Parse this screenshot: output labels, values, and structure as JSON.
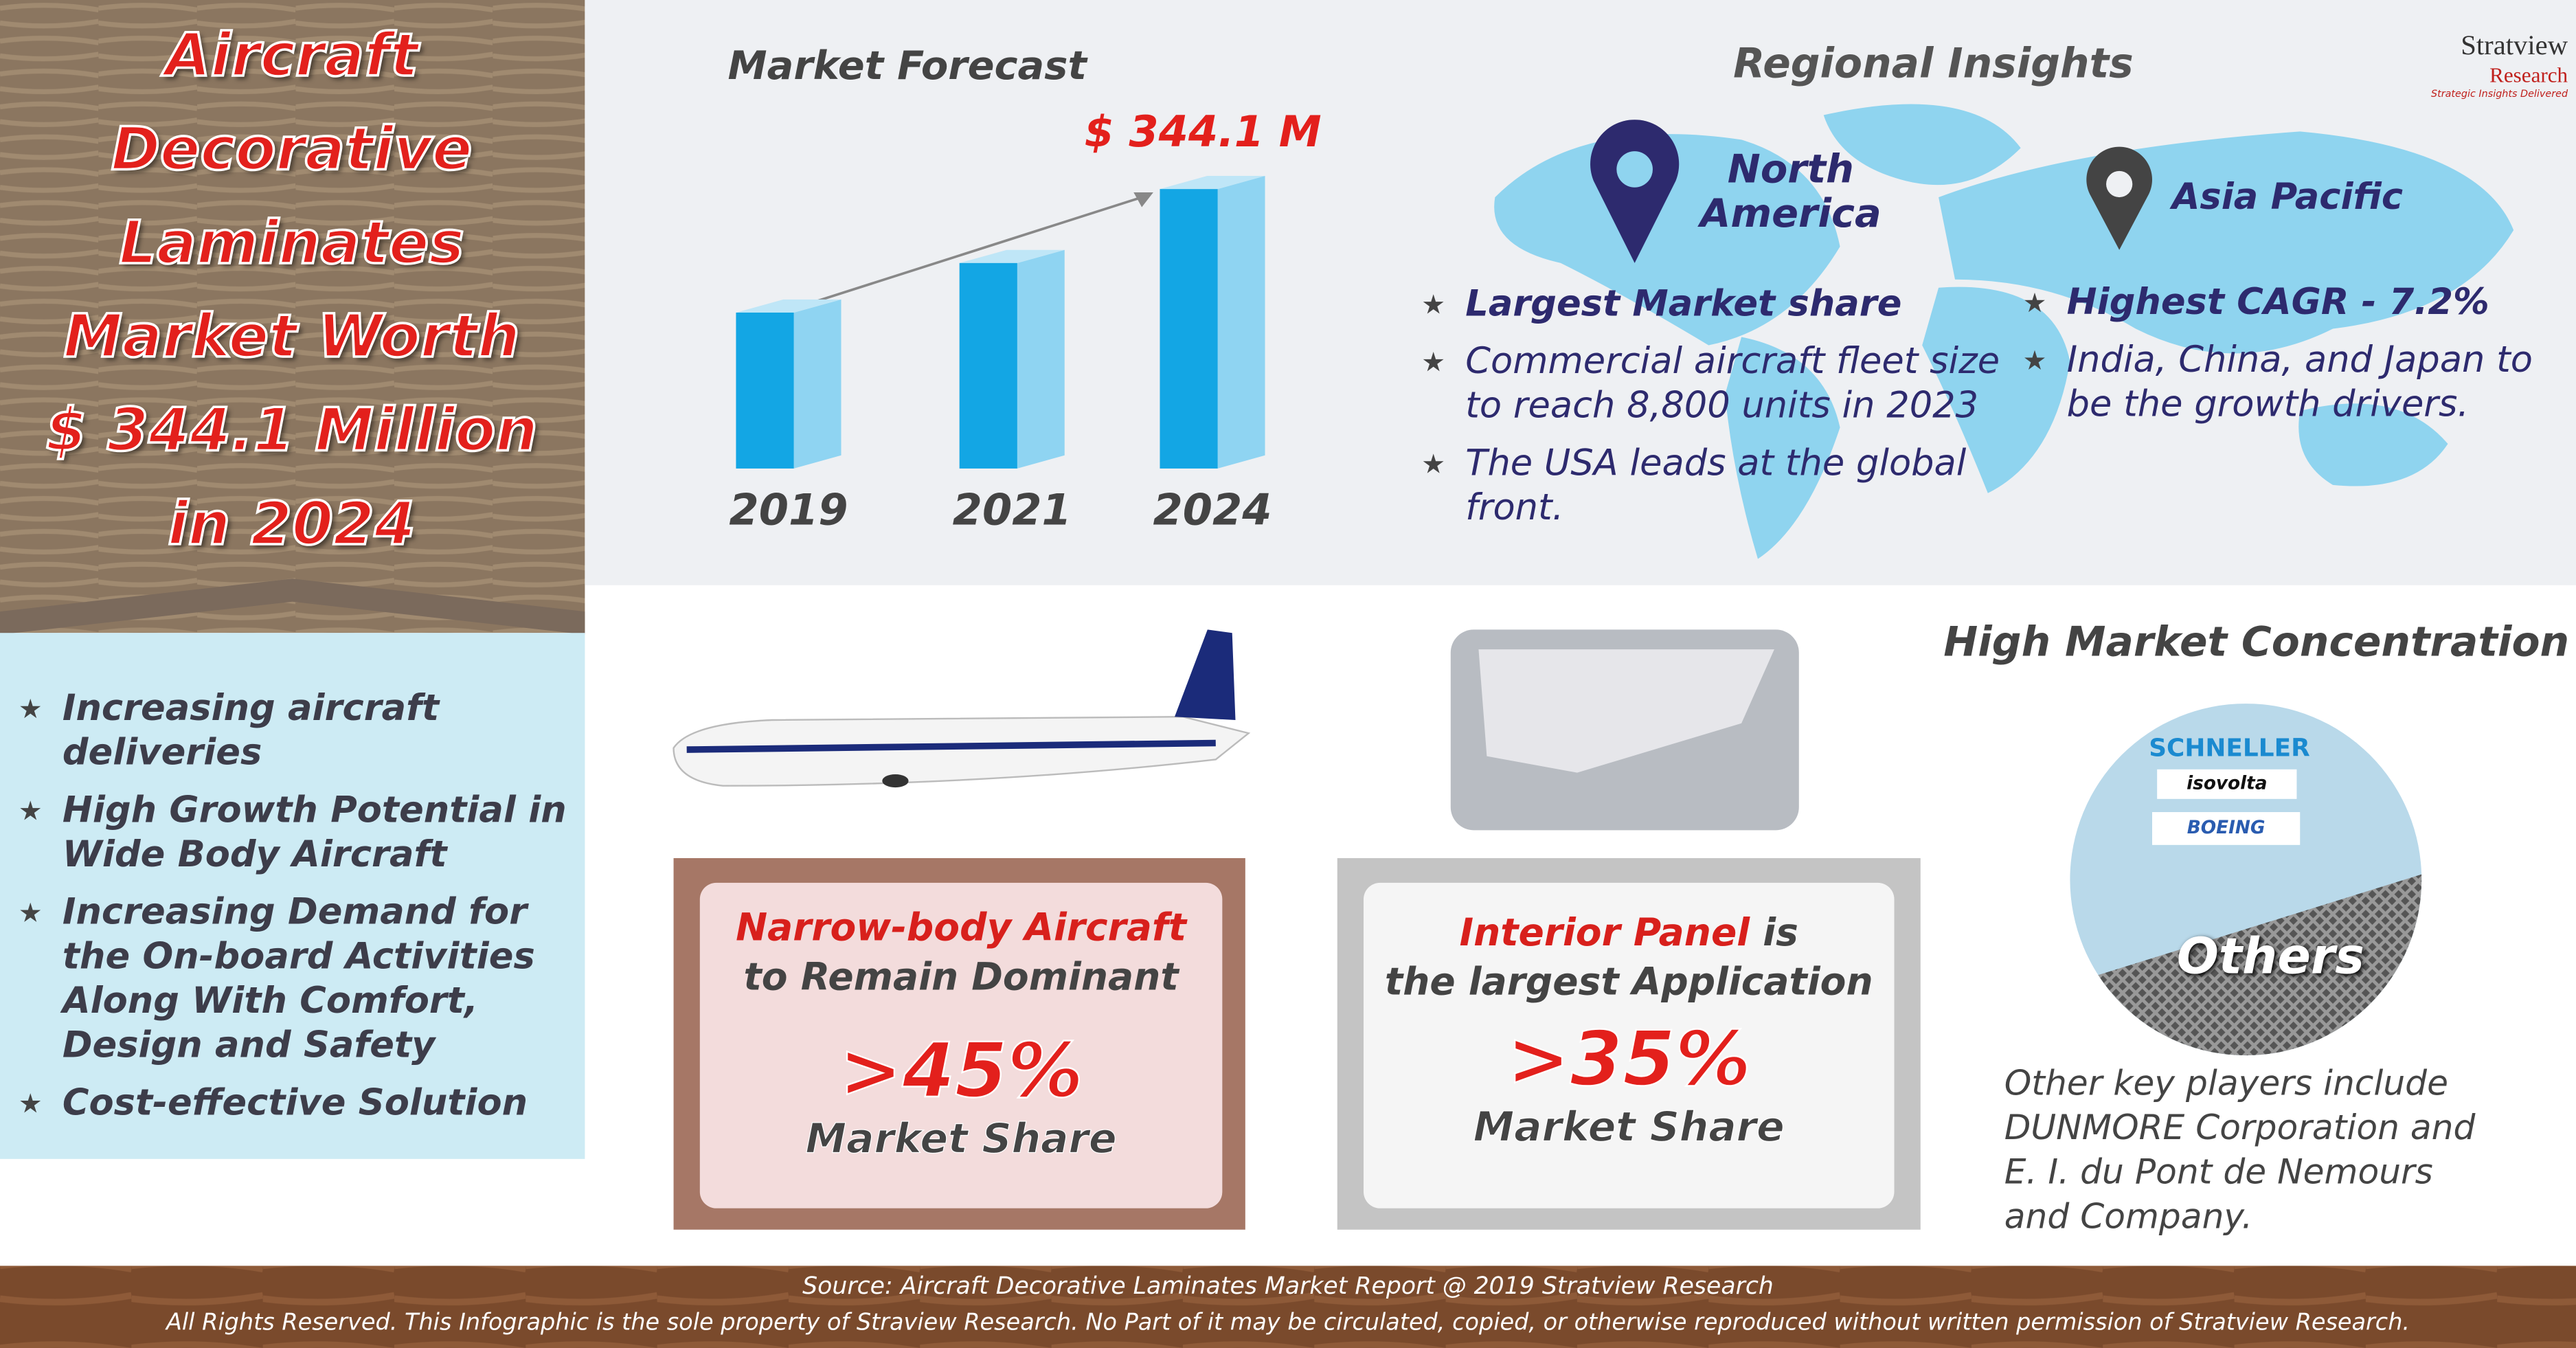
{
  "title": [
    "Aircraft",
    "Decorative",
    "Laminates",
    "Market Worth",
    "$ 344.1 Million",
    "in 2024"
  ],
  "drivers": [
    "Increasing aircraft deliveries",
    "High Growth Potential in Wide Body Aircraft",
    "Increasing Demand for the On-board Activities Along With Comfort, Design and Safety",
    "Cost-effective Solution"
  ],
  "chart_data": {
    "type": "bar",
    "title": "Market Forecast",
    "categories": [
      "2019",
      "2021",
      "2024"
    ],
    "values": [
      192,
      253,
      344.1
    ],
    "annotation": "$ 344.1 M",
    "color": "#13a6e4"
  },
  "regional": {
    "title": "Regional Insights",
    "regions": [
      {
        "name": "North America",
        "points": [
          "Largest Market share",
          "Commercial aircraft fleet size to reach 8,800 units in 2023",
          "The USA leads at the global front."
        ]
      },
      {
        "name": "Asia Pacific",
        "points": [
          "Highest CAGR - 7.2%",
          "India, China, and Japan to be the growth drivers."
        ]
      }
    ]
  },
  "logo": {
    "name": "Stratview",
    "name2": "Research",
    "tagline": "Strategic Insights Delivered"
  },
  "aircraft": {
    "heading": [
      "Narrow-body Aircraft",
      "to Remain Dominant"
    ],
    "value": ">45%",
    "caption": "Market Share"
  },
  "application": {
    "heading": [
      "Interior Panel",
      "is",
      "the largest Application"
    ],
    "value": ">35%",
    "caption": "Market Share"
  },
  "concentration": {
    "title": "High Market Concentration",
    "players": [
      "SCHNELLER",
      "isovolta",
      "BOEING"
    ],
    "others": "Others",
    "note": "Other key players include DUNMORE Corporation and E. I. du Pont de Nemours and Company."
  },
  "footer": {
    "source": "Source: Aircraft Decorative Laminates Market Report @ 2019 Stratview Research",
    "rights": "All Rights Reserved. This Infographic is the sole property of Straview Research. No Part of it may be circulated, copied, or otherwise reproduced without written permission of Stratview Research."
  }
}
